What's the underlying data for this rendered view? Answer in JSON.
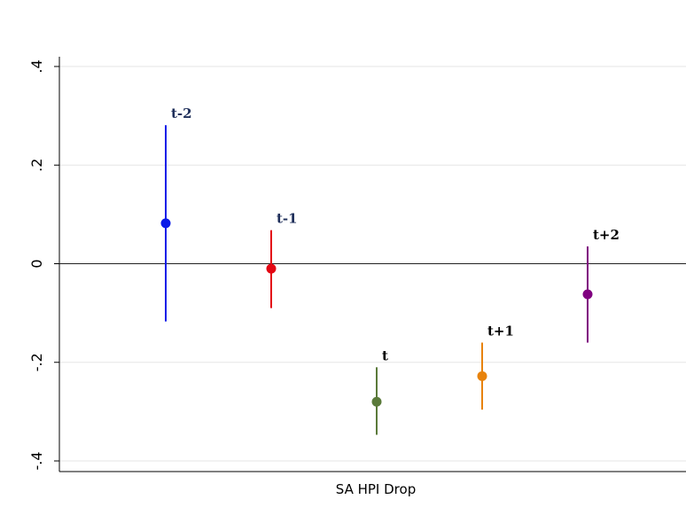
{
  "chart_data": {
    "type": "scatter",
    "xlabel": "SA HPI Drop",
    "ylabel": "",
    "ylim": [
      -0.4,
      0.4
    ],
    "yticks": [
      -0.4,
      -0.2,
      0,
      0.2,
      0.4
    ],
    "ytick_labels": [
      "-.4",
      "-.2",
      "0",
      ".2",
      ".4"
    ],
    "grid": true,
    "points": [
      {
        "label": "t-2",
        "x": 1,
        "y": 0.082,
        "ci_low": -0.117,
        "ci_high": 0.281,
        "color": "#0a1ae8",
        "label_color": "#1f2f5a"
      },
      {
        "label": "t-1",
        "x": 2,
        "y": -0.01,
        "ci_low": -0.09,
        "ci_high": 0.068,
        "color": "#e30613",
        "label_color": "#1f2f5a"
      },
      {
        "label": "t",
        "x": 3,
        "y": -0.28,
        "ci_low": -0.347,
        "ci_high": -0.21,
        "color": "#5a7a3a",
        "label_color": "#000000"
      },
      {
        "label": "t+1",
        "x": 4,
        "y": -0.228,
        "ci_low": -0.296,
        "ci_high": -0.16,
        "color": "#e8830c",
        "label_color": "#000000"
      },
      {
        "label": "t+2",
        "x": 5,
        "y": -0.062,
        "ci_low": -0.16,
        "ci_high": 0.035,
        "color": "#800080",
        "label_color": "#000000"
      }
    ]
  }
}
